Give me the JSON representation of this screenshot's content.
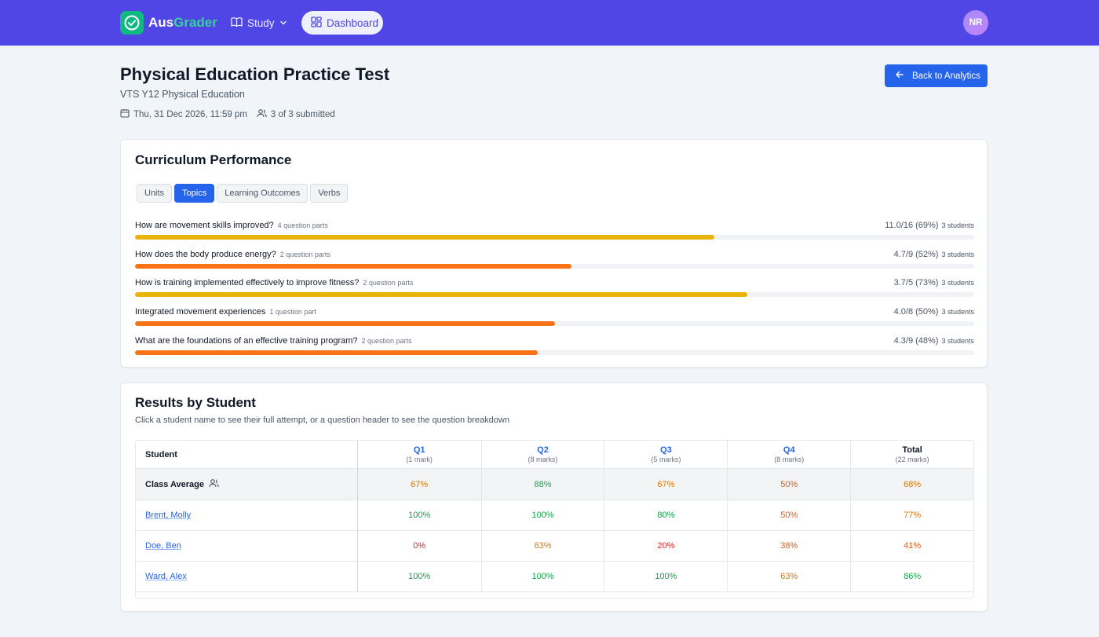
{
  "nav": {
    "brand_part1": "Aus",
    "brand_part2": "Grader",
    "study_label": "Study",
    "dashboard_label": "Dashboard",
    "avatar_initials": "NR",
    "colors": {
      "bar": "#4f46e5",
      "logo": "#10b981",
      "brand_accent": "#34d399"
    }
  },
  "header": {
    "title": "Physical Education Practice Test",
    "subtitle": "VTS Y12 Physical Education",
    "due_date": "Thu, 31 Dec 2026, 11:59 pm",
    "submitted": "3 of 3 submitted",
    "back_button": "Back to Analytics"
  },
  "performance": {
    "title": "Curriculum Performance",
    "tabs": [
      {
        "label": "Units",
        "active": false
      },
      {
        "label": "Topics",
        "active": true
      },
      {
        "label": "Learning Outcomes",
        "active": false
      },
      {
        "label": "Verbs",
        "active": false
      }
    ],
    "topics": [
      {
        "name": "How are movement skills improved?",
        "parts": "4 question parts",
        "score": "11.0/16 (69%)",
        "students": "3 students",
        "percent": 69,
        "color": "#eab308"
      },
      {
        "name": "How does the body produce energy?",
        "parts": "2 question parts",
        "score": "4.7/9 (52%)",
        "students": "3 students",
        "percent": 52,
        "color": "#f97316"
      },
      {
        "name": "How is training implemented effectively to improve fitness?",
        "parts": "2 question parts",
        "score": "3.7/5 (73%)",
        "students": "3 students",
        "percent": 73,
        "color": "#eab308"
      },
      {
        "name": "Integrated movement experiences",
        "parts": "1 question part",
        "score": "4.0/8 (50%)",
        "students": "3 students",
        "percent": 50,
        "color": "#f97316"
      },
      {
        "name": "What are the foundations of an effective training program?",
        "parts": "2 question parts",
        "score": "4.3/9 (48%)",
        "students": "3 students",
        "percent": 48,
        "color": "#f97316"
      }
    ]
  },
  "results": {
    "title": "Results by Student",
    "description": "Click a student name to see their full attempt, or a question header to see the question breakdown",
    "student_header": "Student",
    "columns": [
      {
        "label": "Q1",
        "marks": "(1 mark)"
      },
      {
        "label": "Q2",
        "marks": "(8 marks)"
      },
      {
        "label": "Q3",
        "marks": "(5 marks)"
      },
      {
        "label": "Q4",
        "marks": "(8 marks)"
      },
      {
        "label": "Total",
        "marks": "(22 marks)"
      }
    ],
    "class_average": {
      "label": "Class Average",
      "values": [
        "67%",
        "88%",
        "67%",
        "50%",
        "68%"
      ],
      "colors": [
        "#d97706",
        "#16a34a",
        "#d97706",
        "#ea580c",
        "#d97706"
      ]
    },
    "students": [
      {
        "name": "Brent, Molly",
        "values": [
          "100%",
          "100%",
          "80%",
          "50%",
          "77%"
        ],
        "colors": [
          "#16a34a",
          "#16a34a",
          "#16a34a",
          "#ea580c",
          "#d97706"
        ]
      },
      {
        "name": "Doe, Ben",
        "values": [
          "0%",
          "63%",
          "20%",
          "38%",
          "41%"
        ],
        "colors": [
          "#dc2626",
          "#d97706",
          "#dc2626",
          "#ea580c",
          "#ea580c"
        ]
      },
      {
        "name": "Ward, Alex",
        "values": [
          "100%",
          "100%",
          "100%",
          "63%",
          "86%"
        ],
        "colors": [
          "#16a34a",
          "#16a34a",
          "#16a34a",
          "#d97706",
          "#16a34a"
        ]
      }
    ]
  }
}
